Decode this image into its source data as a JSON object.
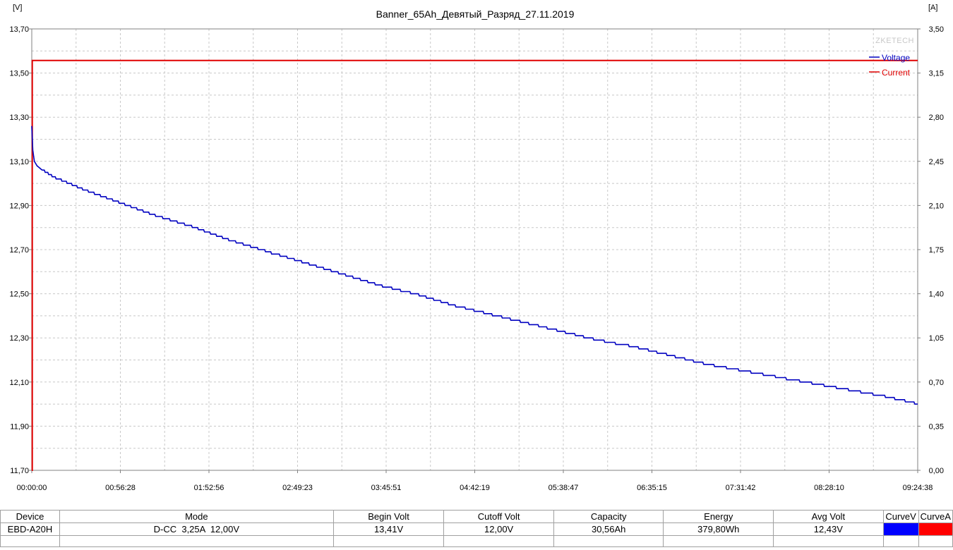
{
  "chart_data": {
    "type": "line",
    "title": "Banner_65Ah_Девятый_Разряд_27.11.2019",
    "left_axis_unit": "[V]",
    "right_axis_unit": "[A]",
    "watermark": "ZKETECH",
    "ylim": [
      11.7,
      13.7
    ],
    "y2lim": [
      0.0,
      3.5
    ],
    "y_ticks": [
      "13,70",
      "13,50",
      "13,30",
      "13,10",
      "12,90",
      "12,70",
      "12,50",
      "12,30",
      "12,10",
      "11,90",
      "11,70"
    ],
    "y2_ticks": [
      "3,50",
      "3,15",
      "2,80",
      "2,45",
      "2,10",
      "1,75",
      "1,40",
      "1,05",
      "0,70",
      "0,35",
      "0,00"
    ],
    "x_ticks": [
      "00:00:00",
      "00:56:28",
      "01:52:56",
      "02:49:23",
      "03:45:51",
      "04:42:19",
      "05:38:47",
      "06:35:15",
      "07:31:42",
      "08:28:10",
      "09:24:38"
    ],
    "xlim_seconds": [
      0,
      33878
    ],
    "grid": true,
    "legend_position": "top-right",
    "series": [
      {
        "name": "Voltage",
        "axis": "left",
        "color": "#0000c0",
        "x_seconds": [
          0,
          40,
          100,
          200,
          400,
          800,
          1400,
          2000,
          3400,
          4800,
          6200,
          7600,
          9000,
          10400,
          11800,
          13200,
          14600,
          16000,
          17400,
          18800,
          20200,
          21600,
          23000,
          24400,
          25800,
          27200,
          28600,
          30000,
          31400,
          32800,
          33878
        ],
        "y_values": [
          13.26,
          13.15,
          13.1,
          13.08,
          13.06,
          13.03,
          13.0,
          12.97,
          12.91,
          12.85,
          12.8,
          12.74,
          12.69,
          12.64,
          12.59,
          12.54,
          12.5,
          12.45,
          12.41,
          12.37,
          12.33,
          12.29,
          12.26,
          12.22,
          12.18,
          12.15,
          12.12,
          12.09,
          12.06,
          12.03,
          12.0
        ]
      },
      {
        "name": "Current",
        "axis": "right",
        "color": "#e00000",
        "x_seconds": [
          0,
          20,
          33878
        ],
        "y_values": [
          0.0,
          3.25,
          3.25
        ]
      }
    ]
  },
  "info_table": {
    "headers": [
      "Device",
      "Mode",
      "Begin Volt",
      "Cutoff Volt",
      "Capacity",
      "Energy",
      "Avg Volt",
      "CurveV",
      "CurveA"
    ],
    "row": [
      "EBD-A20H",
      "D-CC  3,25A  12,00V",
      "13,41V",
      "12,00V",
      "30,56Ah",
      "379,80Wh",
      "12,43V"
    ],
    "curve_colors": [
      "#0000ff",
      "#ff0000"
    ]
  }
}
